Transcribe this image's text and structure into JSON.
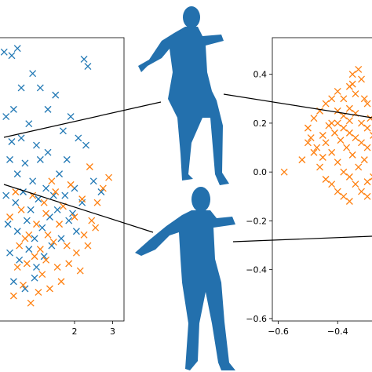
{
  "chart_data": [
    {
      "type": "scatter",
      "marker": "x",
      "title": "",
      "xlabel": "",
      "ylabel": "",
      "xlim": [
        0.0,
        3.3
      ],
      "ylim": [
        -1.35,
        2.6
      ],
      "x_ticks": [
        "2",
        "3"
      ],
      "x_tick_values": [
        2,
        3
      ],
      "grid": false,
      "series": [
        {
          "color": "#1f77b4",
          "points": [
            [
              0.15,
              2.4
            ],
            [
              0.35,
              2.35
            ],
            [
              0.5,
              2.45
            ],
            [
              0.2,
              1.5
            ],
            [
              0.4,
              1.6
            ],
            [
              0.6,
              1.2
            ],
            [
              0.8,
              1.4
            ],
            [
              1.0,
              1.1
            ],
            [
              0.3,
              0.9
            ],
            [
              0.5,
              0.7
            ],
            [
              0.7,
              0.85
            ],
            [
              0.9,
              0.6
            ],
            [
              1.1,
              0.9
            ],
            [
              1.3,
              1.0
            ],
            [
              0.2,
              0.4
            ],
            [
              0.45,
              0.3
            ],
            [
              0.65,
              0.45
            ],
            [
              0.85,
              0.2
            ],
            [
              1.05,
              0.35
            ],
            [
              1.25,
              0.5
            ],
            [
              1.45,
              0.4
            ],
            [
              0.25,
              0.0
            ],
            [
              0.5,
              -0.1
            ],
            [
              0.75,
              0.05
            ],
            [
              0.95,
              -0.2
            ],
            [
              1.15,
              -0.05
            ],
            [
              1.35,
              0.1
            ],
            [
              1.55,
              0.2
            ],
            [
              0.3,
              -0.4
            ],
            [
              0.55,
              -0.5
            ],
            [
              0.8,
              -0.35
            ],
            [
              1.0,
              -0.6
            ],
            [
              1.2,
              -0.45
            ],
            [
              0.4,
              -0.8
            ],
            [
              0.7,
              -0.9
            ],
            [
              0.95,
              -0.75
            ],
            [
              1.6,
              0.7
            ],
            [
              1.8,
              0.9
            ],
            [
              2.0,
              0.5
            ],
            [
              2.2,
              0.3
            ],
            [
              1.7,
              1.3
            ],
            [
              1.9,
              1.5
            ],
            [
              2.1,
              1.2
            ],
            [
              2.3,
              1.1
            ],
            [
              2.35,
              2.2
            ],
            [
              2.25,
              2.3
            ],
            [
              1.3,
              1.6
            ],
            [
              1.5,
              1.8
            ],
            [
              2.5,
              0.6
            ],
            [
              2.7,
              0.45
            ],
            [
              1.1,
              1.9
            ],
            [
              0.9,
              2.1
            ],
            [
              1.65,
              -0.2
            ],
            [
              1.85,
              0.05
            ],
            [
              0.6,
              1.9
            ],
            [
              1.4,
              -0.3
            ],
            [
              2.05,
              -0.1
            ],
            [
              0.35,
              1.15
            ],
            [
              1.75,
              0.4
            ],
            [
              1.95,
              0.15
            ]
          ]
        },
        {
          "color": "#ff7f0e",
          "points": [
            [
              0.3,
              0.1
            ],
            [
              0.55,
              -0.3
            ],
            [
              0.75,
              -0.55
            ],
            [
              0.95,
              -0.45
            ],
            [
              1.15,
              -0.7
            ],
            [
              1.35,
              -0.9
            ],
            [
              1.55,
              -0.6
            ],
            [
              0.4,
              -1.0
            ],
            [
              0.65,
              -0.85
            ],
            [
              0.85,
              -1.1
            ],
            [
              1.05,
              -0.95
            ],
            [
              1.25,
              -0.5
            ],
            [
              1.45,
              -0.25
            ],
            [
              1.65,
              -0.8
            ],
            [
              1.85,
              -0.55
            ],
            [
              2.05,
              -0.4
            ],
            [
              2.25,
              -0.15
            ],
            [
              2.45,
              0.05
            ],
            [
              2.6,
              0.3
            ],
            [
              2.75,
              0.5
            ],
            [
              2.9,
              0.65
            ],
            [
              2.2,
              0.35
            ],
            [
              2.4,
              0.8
            ],
            [
              1.9,
              0.55
            ],
            [
              1.7,
              0.25
            ],
            [
              1.5,
              0.45
            ],
            [
              1.2,
              0.3
            ],
            [
              1.0,
              0.0
            ],
            [
              0.8,
              -0.15
            ],
            [
              0.6,
              0.2
            ],
            [
              1.3,
              -0.15
            ],
            [
              1.6,
              0.0
            ],
            [
              1.8,
              -0.3
            ],
            [
              2.0,
              0.1
            ],
            [
              2.15,
              -0.65
            ],
            [
              2.35,
              -0.3
            ],
            [
              0.5,
              -0.6
            ],
            [
              0.7,
              -0.2
            ],
            [
              1.4,
              0.6
            ],
            [
              1.1,
              -0.35
            ],
            [
              0.9,
              0.4
            ],
            [
              2.55,
              -0.05
            ],
            [
              1.25,
              0.15
            ],
            [
              0.45,
              0.45
            ]
          ]
        }
      ]
    },
    {
      "type": "scatter",
      "marker": "x",
      "title": "",
      "xlabel": "",
      "ylabel": "",
      "xlim": [
        -0.62,
        -0.25
      ],
      "ylim": [
        -0.61,
        0.55
      ],
      "x_ticks": [
        "−0.6",
        "−0.4"
      ],
      "x_tick_values": [
        -0.6,
        -0.4
      ],
      "y_ticks": [
        "0.4",
        "0.2",
        "0.0",
        "−0.2",
        "−0.4",
        "−0.6"
      ],
      "y_tick_values": [
        0.4,
        0.2,
        0.0,
        -0.2,
        -0.4,
        -0.6
      ],
      "grid": false,
      "series": [
        {
          "color": "#ff7f0e",
          "points": [
            [
              -0.58,
              0.0
            ],
            [
              -0.52,
              0.05
            ],
            [
              -0.48,
              0.08
            ],
            [
              -0.5,
              0.12
            ],
            [
              -0.45,
              0.15
            ],
            [
              -0.42,
              0.2
            ],
            [
              -0.4,
              0.25
            ],
            [
              -0.38,
              0.3
            ],
            [
              -0.36,
              0.35
            ],
            [
              -0.35,
              0.4
            ],
            [
              -0.33,
              0.42
            ],
            [
              -0.32,
              0.38
            ],
            [
              -0.34,
              0.32
            ],
            [
              -0.31,
              0.3
            ],
            [
              -0.3,
              0.28
            ],
            [
              -0.36,
              0.26
            ],
            [
              -0.4,
              0.2
            ],
            [
              -0.38,
              0.18
            ],
            [
              -0.36,
              0.16
            ],
            [
              -0.34,
              0.14
            ],
            [
              -0.32,
              0.12
            ],
            [
              -0.3,
              0.1
            ],
            [
              -0.44,
              0.12
            ],
            [
              -0.42,
              0.08
            ],
            [
              -0.4,
              0.04
            ],
            [
              -0.38,
              0.0
            ],
            [
              -0.36,
              -0.02
            ],
            [
              -0.34,
              -0.05
            ],
            [
              -0.32,
              -0.08
            ],
            [
              -0.3,
              -0.04
            ],
            [
              -0.46,
              0.02
            ],
            [
              -0.44,
              -0.03
            ],
            [
              -0.42,
              -0.05
            ],
            [
              -0.4,
              -0.08
            ],
            [
              -0.38,
              -0.1
            ],
            [
              -0.36,
              -0.12
            ],
            [
              -0.5,
              0.18
            ],
            [
              -0.48,
              0.22
            ],
            [
              -0.46,
              0.25
            ],
            [
              -0.44,
              0.28
            ],
            [
              -0.42,
              0.3
            ],
            [
              -0.4,
              0.33
            ],
            [
              -0.38,
              0.23
            ],
            [
              -0.36,
              0.21
            ],
            [
              -0.34,
              0.24
            ],
            [
              -0.32,
              0.2
            ],
            [
              -0.3,
              0.18
            ],
            [
              -0.28,
              0.15
            ],
            [
              -0.29,
              0.22
            ],
            [
              -0.31,
              0.05
            ],
            [
              -0.33,
              0.02
            ],
            [
              -0.35,
              0.07
            ],
            [
              -0.37,
              0.1
            ],
            [
              -0.39,
              0.13
            ],
            [
              -0.41,
              0.16
            ],
            [
              -0.43,
              0.19
            ],
            [
              -0.45,
              0.06
            ],
            [
              -0.47,
              0.1
            ],
            [
              -0.49,
              0.14
            ],
            [
              -0.28,
              -0.02
            ],
            [
              -0.27,
              0.08
            ],
            [
              -0.26,
              0.12
            ],
            [
              -0.3,
              -0.1
            ],
            [
              -0.35,
              0.36
            ]
          ]
        }
      ]
    }
  ]
}
